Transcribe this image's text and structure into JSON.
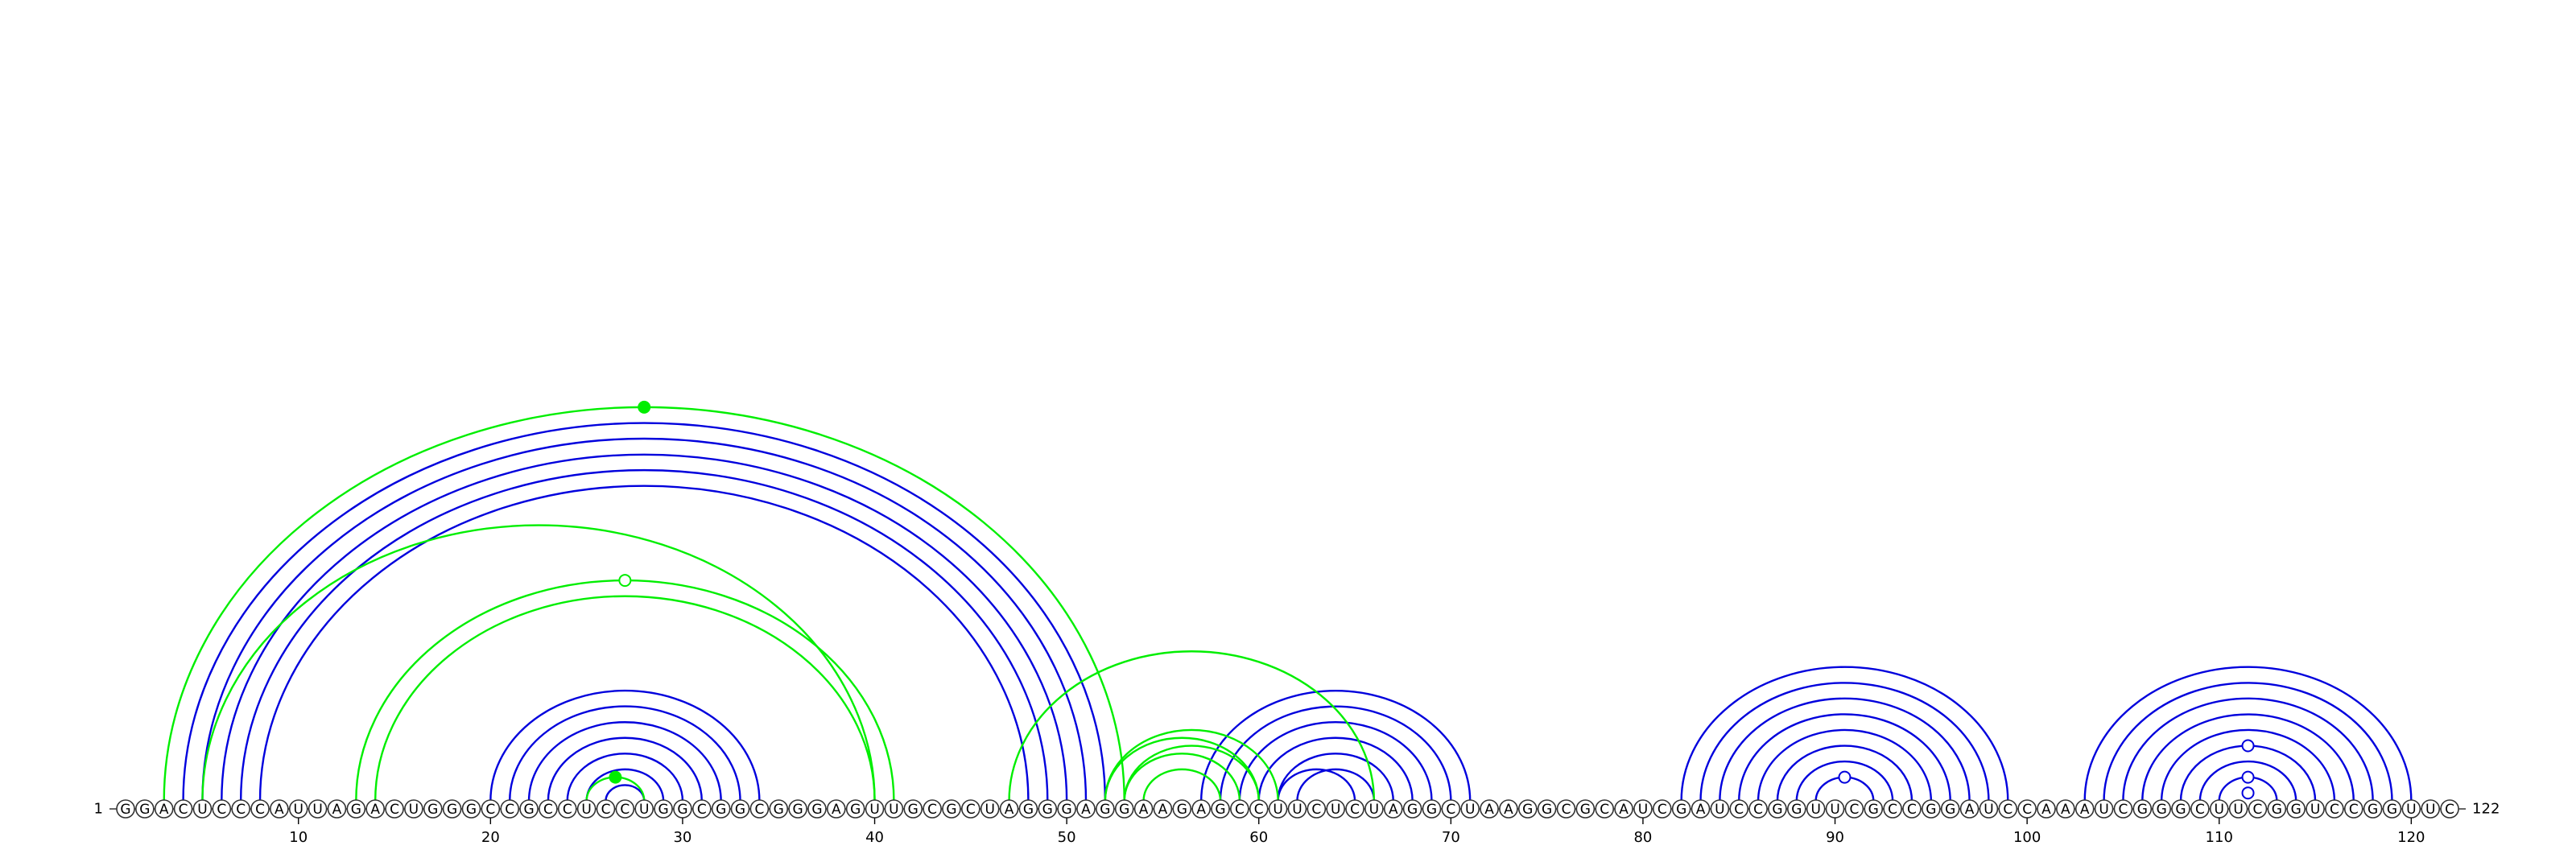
{
  "chart_data": {
    "type": "arc",
    "sequence": "GGACUCCCAUUAGACUGGGCCGCCUCCUGGCGGCGGGAGUUGCGCUAGGGAGGAAGAGCCUUCUCUAGGCUAAGGCGCAUCGAUCCGGUUCGCCGGAUCCAAAUCGGGCUUCGGUCCGGUUC",
    "start_label": "1",
    "end_label": "122",
    "x_ticks": [
      10,
      20,
      30,
      40,
      50,
      60,
      70,
      80,
      90,
      100,
      110,
      120
    ],
    "colors": {
      "blue": "#0000dd",
      "green": "#00ee00",
      "backbone": "#333333"
    },
    "blue_helices": [
      {
        "i": 4,
        "j": 52,
        "n": 5
      },
      {
        "i": 20,
        "j": 34,
        "n": 7
      },
      {
        "i": 57,
        "j": 71,
        "n": 6
      },
      {
        "i": 61,
        "j": 65,
        "n": 1
      },
      {
        "i": 82,
        "j": 99,
        "n": 8
      },
      {
        "i": 103,
        "j": 120,
        "n": 8
      }
    ],
    "green_pairs": [
      {
        "i": 3,
        "j": 53
      },
      {
        "i": 5,
        "j": 40
      },
      {
        "i": 13,
        "j": 41
      },
      {
        "i": 14,
        "j": 40
      },
      {
        "i": 25,
        "j": 28
      },
      {
        "i": 47,
        "j": 66
      },
      {
        "i": 52,
        "j": 61
      },
      {
        "i": 52,
        "j": 60
      },
      {
        "i": 53,
        "j": 59
      },
      {
        "i": 53,
        "j": 60
      },
      {
        "i": 54,
        "j": 58
      }
    ],
    "markers": [
      {
        "i": 3,
        "j": 53,
        "color": "green",
        "filled": true
      },
      {
        "i": 13,
        "j": 41,
        "color": "green",
        "filled": false
      },
      {
        "i": 25,
        "j": 28,
        "color": "green",
        "filled": true
      },
      {
        "i": 89,
        "j": 92,
        "color": "blue",
        "filled": false
      },
      {
        "i": 108,
        "j": 115,
        "color": "blue",
        "filled": false
      },
      {
        "i": 110,
        "j": 113,
        "color": "blue",
        "filled": false
      },
      {
        "i": 111,
        "j": 112,
        "color": "blue",
        "filled": false
      }
    ]
  }
}
